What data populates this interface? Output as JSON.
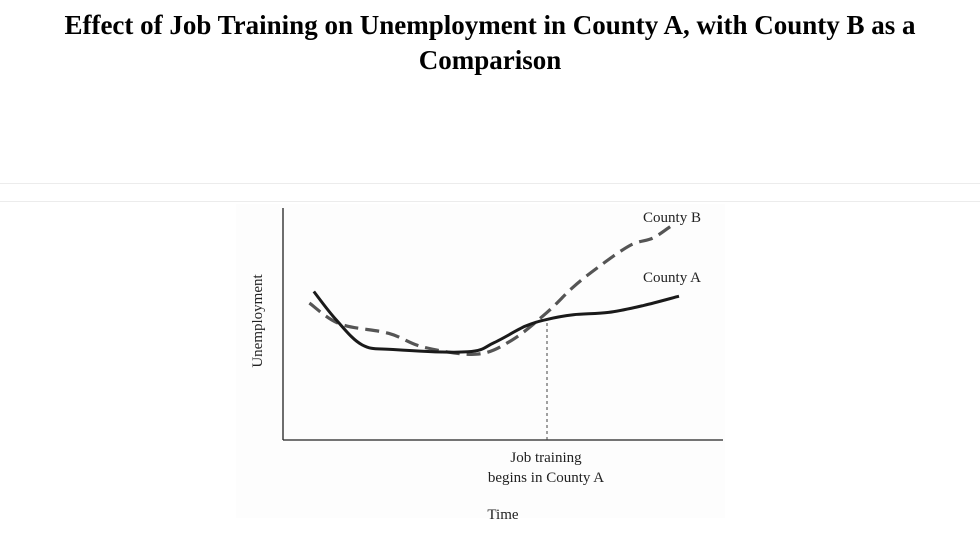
{
  "page": {
    "title": "Effect of Job Training on Unemployment in County A, with County B as a Comparison"
  },
  "chart_data": {
    "type": "line",
    "title": "Effect of Job Training on Unemployment in County A, with County B as a Comparison",
    "xlabel": "Time",
    "ylabel": "Unemployment",
    "xlim": [
      0,
      100
    ],
    "ylim": [
      0,
      100
    ],
    "grid": false,
    "axis_ticks": false,
    "series": [
      {
        "name": "County A",
        "style": "solid",
        "color": "#1a1a1a",
        "points": [
          [
            7,
            64
          ],
          [
            12,
            52
          ],
          [
            18,
            41
          ],
          [
            25,
            39
          ],
          [
            42,
            38
          ],
          [
            48,
            42
          ],
          [
            55,
            49
          ],
          [
            60,
            52
          ],
          [
            66,
            54
          ],
          [
            74,
            55
          ],
          [
            82,
            58
          ],
          [
            90,
            62
          ]
        ]
      },
      {
        "name": "County B",
        "style": "dashed",
        "color": "#555555",
        "points": [
          [
            6,
            59
          ],
          [
            13,
            50
          ],
          [
            24,
            46
          ],
          [
            32,
            40
          ],
          [
            44,
            37
          ],
          [
            52,
            43
          ],
          [
            60,
            55
          ],
          [
            66,
            66
          ],
          [
            72,
            75
          ],
          [
            79,
            84
          ],
          [
            84,
            87
          ],
          [
            88,
            92
          ]
        ]
      }
    ],
    "annotations": [
      {
        "label_lines": [
          "Job training",
          "begins in County A"
        ],
        "x": 60,
        "style": "dotted-vertical"
      }
    ]
  }
}
